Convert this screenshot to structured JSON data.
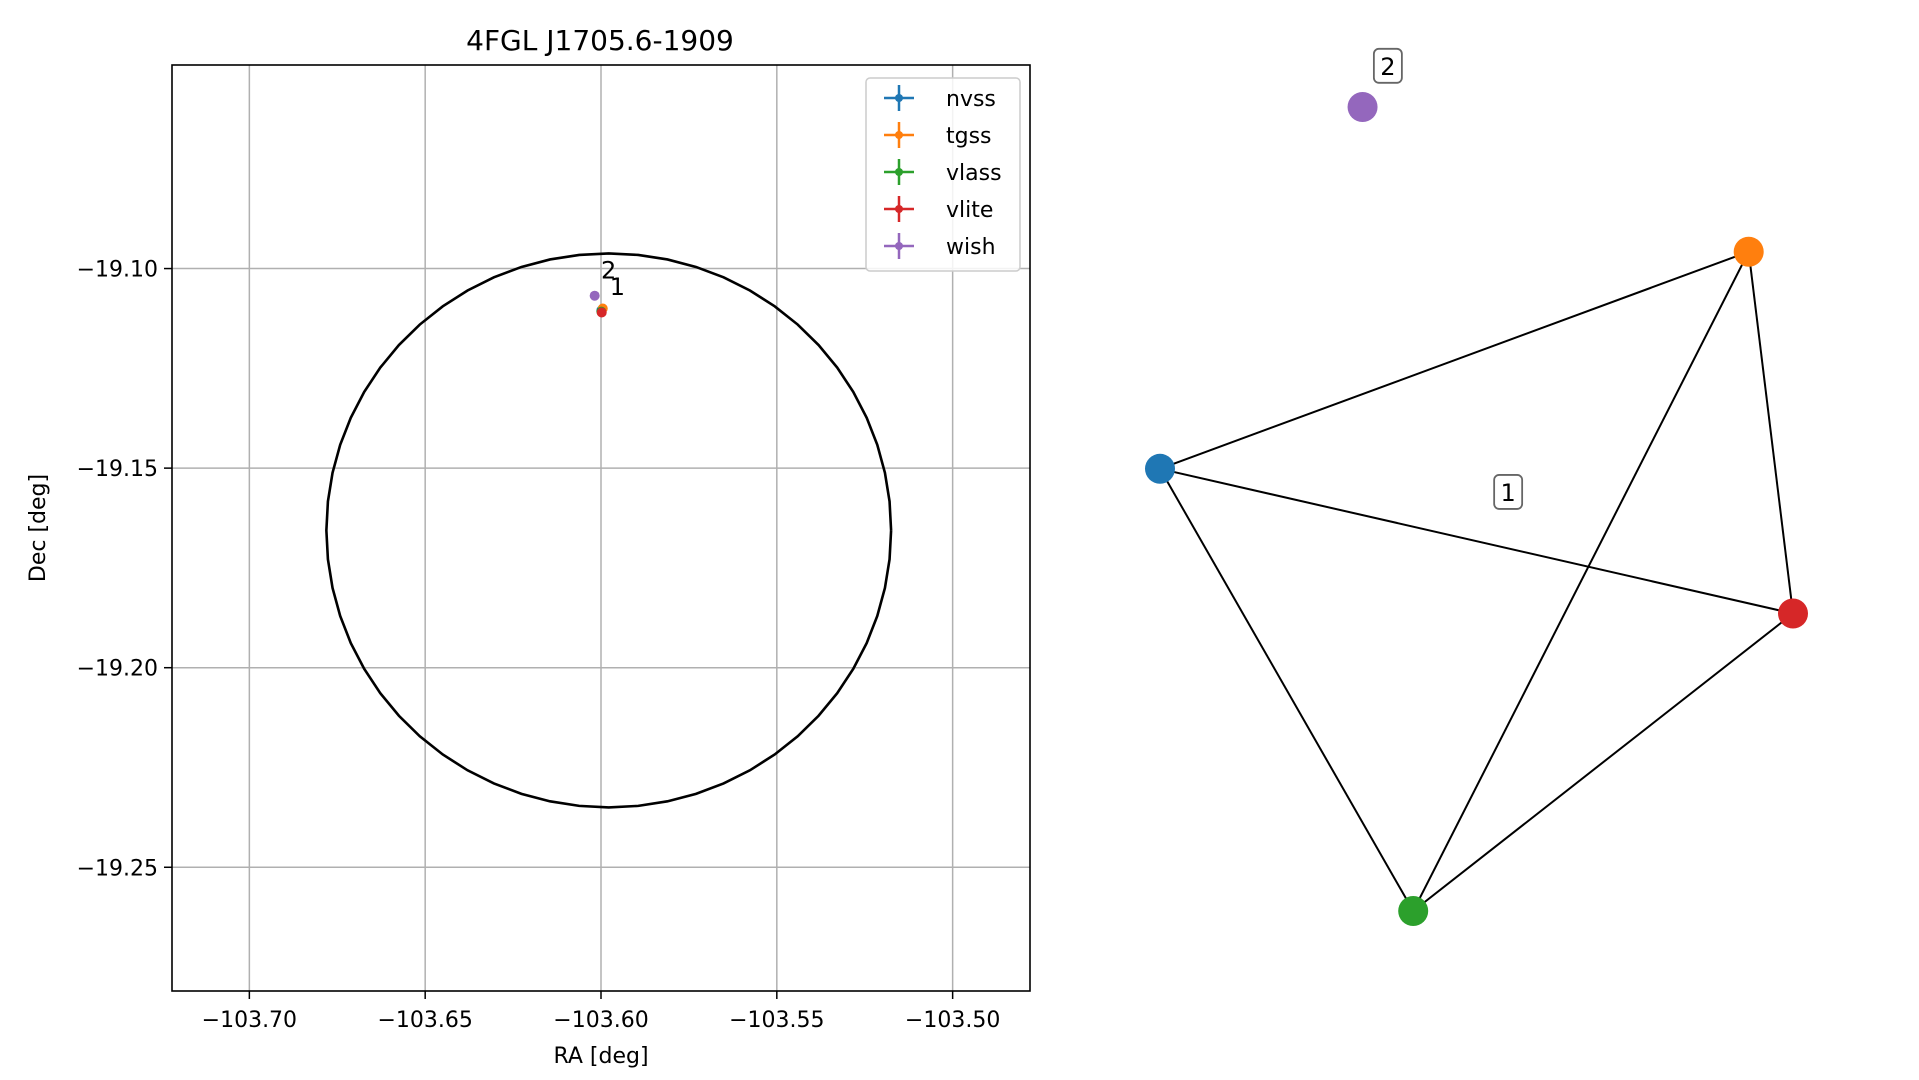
{
  "chart_data": [
    {
      "type": "scatter",
      "title": "4FGL J1705.6-1909",
      "xlabel": "RA [deg]",
      "ylabel": "Dec [deg]",
      "xlim": [
        -103.722,
        -103.478
      ],
      "ylim": [
        -19.281,
        -19.049
      ],
      "xticks": [
        -103.7,
        -103.65,
        -103.6,
        -103.55,
        -103.5
      ],
      "xtick_labels": [
        "−103.70",
        "−103.65",
        "−103.60",
        "−103.55",
        "−103.50"
      ],
      "yticks": [
        -19.1,
        -19.15,
        -19.2,
        -19.25
      ],
      "ytick_labels": [
        "−19.10",
        "−19.15",
        "−19.20",
        "−19.25"
      ],
      "grid": true,
      "legend_position": "top-right",
      "series": [
        {
          "name": "nvss",
          "color": "#1f77b4",
          "points": [
            {
              "x": -103.5999,
              "y": -19.1105
            }
          ]
        },
        {
          "name": "tgss",
          "color": "#ff7f0e",
          "points": [
            {
              "x": -103.5995,
              "y": -19.11
            }
          ]
        },
        {
          "name": "vlass",
          "color": "#2ca02c",
          "points": [
            {
              "x": -103.5999,
              "y": -19.1108
            }
          ]
        },
        {
          "name": "vlite",
          "color": "#d62728",
          "points": [
            {
              "x": -103.5998,
              "y": -19.111
            }
          ]
        },
        {
          "name": "wish",
          "color": "#9467bd",
          "points": [
            {
              "x": -103.6018,
              "y": -19.1068
            }
          ]
        }
      ],
      "ellipse": {
        "center_x": -103.5978,
        "center_y": -19.1656,
        "semi_axis_ra": 0.0803,
        "semi_axis_dec": 0.0694
      },
      "annotations": [
        {
          "text": "2",
          "x": -103.6,
          "y": -19.1025
        },
        {
          "text": "1",
          "x": -103.5975,
          "y": -19.1066
        }
      ]
    },
    {
      "type": "network",
      "nodes": [
        {
          "name": "nvss",
          "color": "#1f77b4",
          "x": 0.0,
          "y": 0.55
        },
        {
          "name": "tgss",
          "color": "#ff7f0e",
          "x": 0.93,
          "y": 0.82
        },
        {
          "name": "vlass",
          "color": "#2ca02c",
          "x": 0.4,
          "y": 0.0
        },
        {
          "name": "vlite",
          "color": "#d62728",
          "x": 1.0,
          "y": 0.37
        },
        {
          "name": "wish",
          "color": "#9467bd",
          "x": 0.32,
          "y": 1.0
        }
      ],
      "edges": [
        [
          "nvss",
          "tgss"
        ],
        [
          "nvss",
          "vlite"
        ],
        [
          "nvss",
          "vlass"
        ],
        [
          "tgss",
          "vlass"
        ],
        [
          "tgss",
          "vlite"
        ],
        [
          "vlass",
          "vlite"
        ]
      ],
      "group_labels": [
        {
          "text": "1",
          "x": 0.55,
          "y": 0.52
        },
        {
          "text": "2",
          "x": 0.36,
          "y": 1.05
        }
      ]
    }
  ]
}
